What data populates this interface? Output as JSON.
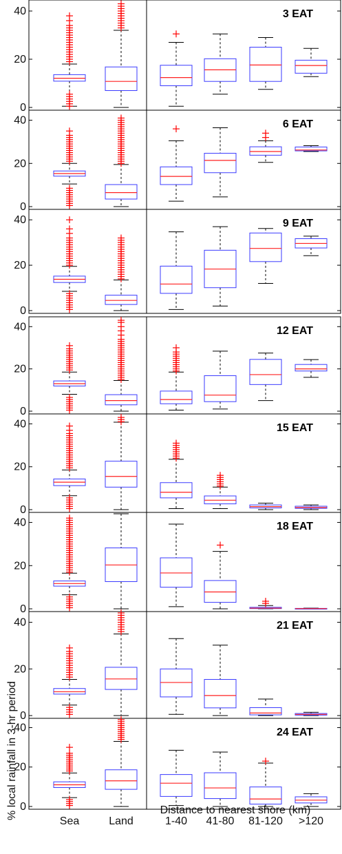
{
  "chart_data": {
    "type": "box",
    "categories": [
      "Sea",
      "Land",
      "1-40",
      "41-80",
      "81-120",
      ">120"
    ],
    "ylabel": "% local rainfall in 3-hr period",
    "xlabel": "Distance to nearest shore (km)",
    "ylim": [
      0,
      44
    ],
    "yticks": [
      0,
      20,
      40
    ],
    "colors": {
      "box": "#3a3aff",
      "median": "#ff2020",
      "outlier": "#ff0000",
      "whisker": "#000000"
    },
    "panels": [
      {
        "title": "3 EAT",
        "boxes": [
          {
            "category": "Sea",
            "low": 0.5,
            "q1": 10.9,
            "median": 12.1,
            "q3": 13.6,
            "high": 18,
            "outliers": [
              0.5,
              1.5,
              2.5,
              3.5,
              4.5,
              5.5,
              19,
              20,
              21,
              22,
              23,
              24,
              25,
              26,
              27,
              28,
              29,
              30,
              31,
              32,
              33,
              34,
              36,
              38
            ]
          },
          {
            "category": "Land",
            "low": 0,
            "q1": 7,
            "median": 10.8,
            "q3": 16.8,
            "high": 32,
            "outliers": [
              33,
              34,
              35,
              36,
              37,
              38,
              39,
              40,
              41,
              42,
              43
            ]
          },
          {
            "category": "1-40",
            "low": 0.5,
            "q1": 9,
            "median": 12.4,
            "q3": 17.5,
            "high": 27,
            "outliers": [
              30.5
            ]
          },
          {
            "category": "41-80",
            "low": 5.5,
            "q1": 10.8,
            "median": 15.6,
            "q3": 20.2,
            "high": 30.5,
            "outliers": []
          },
          {
            "category": "81-120",
            "low": 7.5,
            "q1": 10.8,
            "median": 17.6,
            "q3": 25,
            "high": 29,
            "outliers": []
          },
          {
            "category": ">120",
            "low": 12.8,
            "q1": 14.2,
            "median": 17.4,
            "q3": 19.6,
            "high": 24.5,
            "outliers": []
          }
        ]
      },
      {
        "title": "6 EAT",
        "boxes": [
          {
            "category": "Sea",
            "low": 10.5,
            "q1": 14.1,
            "median": 15.3,
            "q3": 16.5,
            "high": 20,
            "outliers": [
              0.5,
              1.5,
              2.5,
              3.5,
              4.5,
              5.5,
              6.5,
              7.5,
              8.5,
              21,
              22,
              23,
              24,
              25,
              26,
              27,
              28,
              29,
              30,
              31,
              32,
              33,
              35
            ]
          },
          {
            "category": "Land",
            "low": 0,
            "q1": 3.5,
            "median": 6.5,
            "q3": 10.2,
            "high": 19.5,
            "outliers": [
              20,
              21,
              22,
              23,
              24,
              25,
              26,
              27,
              28,
              29,
              30,
              31,
              32,
              33,
              34,
              35,
              36,
              37,
              38,
              39,
              40,
              41
            ]
          },
          {
            "category": "1-40",
            "low": 2.5,
            "q1": 10.2,
            "median": 14,
            "q3": 18.4,
            "high": 30.5,
            "outliers": [
              36
            ]
          },
          {
            "category": "41-80",
            "low": 4.5,
            "q1": 15.7,
            "median": 21.4,
            "q3": 24.7,
            "high": 36.5,
            "outliers": []
          },
          {
            "category": "81-120",
            "low": 20.5,
            "q1": 23.8,
            "median": 25.5,
            "q3": 27.7,
            "high": 30.5,
            "outliers": [
              32,
              34
            ]
          },
          {
            "category": ">120",
            "low": 25.5,
            "q1": 25.8,
            "median": 26.2,
            "q3": 27.6,
            "high": 28.2,
            "outliers": []
          }
        ]
      },
      {
        "title": "9 EAT",
        "boxes": [
          {
            "category": "Sea",
            "low": 8.5,
            "q1": 12.4,
            "median": 13.8,
            "q3": 15.2,
            "high": 19.5,
            "outliers": [
              0.5,
              1.5,
              2.5,
              3.5,
              4.5,
              5.5,
              6.5,
              7.5,
              20,
              21,
              22,
              23,
              24,
              25,
              26,
              27,
              28,
              29,
              30,
              31,
              32,
              34,
              36,
              40
            ]
          },
          {
            "category": "Land",
            "low": 0,
            "q1": 2.7,
            "median": 4.5,
            "q3": 6.8,
            "high": 13.5,
            "outliers": [
              14,
              15,
              16,
              17,
              18,
              19,
              20,
              21,
              22,
              23,
              24,
              25,
              26,
              27,
              28,
              29,
              30,
              31,
              32
            ]
          },
          {
            "category": "1-40",
            "low": 0.5,
            "q1": 7.6,
            "median": 11.7,
            "q3": 19.6,
            "high": 34.7,
            "outliers": []
          },
          {
            "category": "41-80",
            "low": 2,
            "q1": 10.1,
            "median": 18.3,
            "q3": 26.6,
            "high": 37,
            "outliers": []
          },
          {
            "category": "81-120",
            "low": 12,
            "q1": 21.6,
            "median": 27.4,
            "q3": 34.2,
            "high": 36.2,
            "outliers": []
          },
          {
            "category": ">120",
            "low": 24.2,
            "q1": 27.6,
            "median": 29.6,
            "q3": 31.7,
            "high": 32.8,
            "outliers": []
          }
        ]
      },
      {
        "title": "12 EAT",
        "boxes": [
          {
            "category": "Sea",
            "low": 8,
            "q1": 11.9,
            "median": 13,
            "q3": 14.3,
            "high": 18.5,
            "outliers": [
              0.5,
              1.5,
              2.5,
              3.5,
              4.5,
              5.5,
              6.5,
              19.5,
              20.5,
              21.5,
              22.5,
              23.5,
              24.5,
              25.5,
              26.5,
              27.5,
              28.5,
              29.5,
              31
            ]
          },
          {
            "category": "Land",
            "low": 0,
            "q1": 3,
            "median": 5,
            "q3": 7.8,
            "high": 14.5,
            "outliers": [
              15,
              16,
              17,
              18,
              19,
              20,
              21,
              22,
              23,
              24,
              25,
              26,
              27,
              28,
              29,
              30,
              31,
              32,
              33,
              34,
              36,
              38,
              40,
              42,
              43
            ]
          },
          {
            "category": "1-40",
            "low": 0.5,
            "q1": 3.5,
            "median": 5.5,
            "q3": 9.5,
            "high": 18.5,
            "outliers": [
              19,
              20,
              21,
              22,
              23,
              24,
              25,
              26,
              27,
              28,
              30
            ]
          },
          {
            "category": "41-80",
            "low": 1,
            "q1": 4.5,
            "median": 7.6,
            "q3": 16.8,
            "high": 28.4,
            "outliers": []
          },
          {
            "category": "81-120",
            "low": 5,
            "q1": 12.6,
            "median": 17.3,
            "q3": 24.5,
            "high": 27.5,
            "outliers": []
          },
          {
            "category": ">120",
            "low": 16,
            "q1": 19,
            "median": 20,
            "q3": 22.1,
            "high": 24.4,
            "outliers": []
          }
        ]
      },
      {
        "title": "15 EAT",
        "boxes": [
          {
            "category": "Sea",
            "low": 6.5,
            "q1": 11.2,
            "median": 12.8,
            "q3": 14.3,
            "high": 18.5,
            "outliers": [
              0.5,
              1.5,
              2.5,
              3.5,
              4.5,
              5.5,
              19.5,
              20.5,
              21.5,
              22.5,
              23.5,
              24.5,
              25.5,
              26.5,
              27.5,
              28.5,
              29.5,
              30.5,
              31.5,
              32.5,
              33.5,
              34.5,
              35.5,
              37,
              39
            ]
          },
          {
            "category": "Land",
            "low": 0,
            "q1": 10.5,
            "median": 15.5,
            "q3": 22.6,
            "high": 40.8,
            "outliers": [
              41,
              42,
              43
            ]
          },
          {
            "category": "1-40",
            "low": 0.5,
            "q1": 5.5,
            "median": 8.1,
            "q3": 12.6,
            "high": 23.5,
            "outliers": [
              24,
              25,
              26,
              27,
              28,
              29,
              30,
              31
            ]
          },
          {
            "category": "41-80",
            "low": 0.5,
            "q1": 2.7,
            "median": 4.4,
            "q3": 6.4,
            "high": 10.5,
            "outliers": [
              11,
              12,
              13,
              14,
              15,
              16
            ]
          },
          {
            "category": "81-120",
            "low": 0,
            "q1": 0.8,
            "median": 1.4,
            "q3": 2.2,
            "high": 3,
            "outliers": []
          },
          {
            "category": ">120",
            "low": 0,
            "q1": 0.6,
            "median": 1,
            "q3": 1.6,
            "high": 2.2,
            "outliers": []
          }
        ]
      },
      {
        "title": "18 EAT",
        "boxes": [
          {
            "category": "Sea",
            "low": 6.5,
            "q1": 10.5,
            "median": 11.7,
            "q3": 12.9,
            "high": 16.5,
            "outliers": [
              0.5,
              1.5,
              2.5,
              3.5,
              4.5,
              5.5,
              17,
              18,
              19,
              20,
              21,
              22,
              23,
              24,
              25,
              26,
              27,
              28,
              29,
              30,
              31,
              32,
              33,
              34,
              35,
              36,
              37,
              38,
              39,
              40,
              41,
              42
            ]
          },
          {
            "category": "Land",
            "low": 0,
            "q1": 12.6,
            "median": 20.3,
            "q3": 28.2,
            "high": 44,
            "outliers": []
          },
          {
            "category": "1-40",
            "low": 1,
            "q1": 10,
            "median": 16.6,
            "q3": 23.6,
            "high": 39.2,
            "outliers": []
          },
          {
            "category": "41-80",
            "low": 0,
            "q1": 3,
            "median": 7.8,
            "q3": 13.1,
            "high": 26.6,
            "outliers": [
              29.5
            ]
          },
          {
            "category": "81-120",
            "low": 0,
            "q1": 0.1,
            "median": 0.3,
            "q3": 0.7,
            "high": 1.5,
            "outliers": [
              2.5,
              3.5
            ]
          },
          {
            "category": ">120",
            "low": 0,
            "q1": 0,
            "median": 0.1,
            "q3": 0.2,
            "high": 0.3,
            "outliers": []
          }
        ]
      },
      {
        "title": "21 EAT",
        "boxes": [
          {
            "category": "Sea",
            "low": 4.5,
            "q1": 9.2,
            "median": 10.2,
            "q3": 11.6,
            "high": 15.5,
            "outliers": [
              0.5,
              1.5,
              2.5,
              3.5,
              16.5,
              17.5,
              18.5,
              19.5,
              20.5,
              21.5,
              22.5,
              23.5,
              24.5,
              25.5,
              26.5,
              27.5,
              29
            ]
          },
          {
            "category": "Land",
            "low": 0,
            "q1": 11.2,
            "median": 15.7,
            "q3": 20.7,
            "high": 35,
            "outliers": [
              36,
              37,
              38,
              39,
              40,
              41,
              42,
              43,
              44
            ]
          },
          {
            "category": "1-40",
            "low": 0.5,
            "q1": 8,
            "median": 14.2,
            "q3": 20,
            "high": 33,
            "outliers": []
          },
          {
            "category": "41-80",
            "low": 0,
            "q1": 3.3,
            "median": 8.6,
            "q3": 15.5,
            "high": 30.2,
            "outliers": []
          },
          {
            "category": "81-120",
            "low": 0,
            "q1": 0.3,
            "median": 1.1,
            "q3": 3.4,
            "high": 7.1,
            "outliers": []
          },
          {
            "category": ">120",
            "low": 0,
            "q1": 0.2,
            "median": 0.5,
            "q3": 0.9,
            "high": 1.4,
            "outliers": []
          }
        ]
      },
      {
        "title": "24 EAT",
        "boxes": [
          {
            "category": "Sea",
            "low": 4.5,
            "q1": 9.6,
            "median": 11,
            "q3": 12.5,
            "high": 17,
            "outliers": [
              0.5,
              1.5,
              2.5,
              3.5,
              18,
              19,
              20,
              21,
              22,
              23,
              24,
              25,
              26,
              27,
              30
            ]
          },
          {
            "category": "Land",
            "low": 0,
            "q1": 8.7,
            "median": 13,
            "q3": 18.6,
            "high": 33,
            "outliers": [
              34,
              35,
              36,
              37,
              38,
              39,
              40,
              41,
              42,
              43,
              44
            ]
          },
          {
            "category": "1-40",
            "low": 0.5,
            "q1": 5.1,
            "median": 11.8,
            "q3": 16.2,
            "high": 28.5,
            "outliers": []
          },
          {
            "category": "41-80",
            "low": 0,
            "q1": 4,
            "median": 9.4,
            "q3": 17.1,
            "high": 27.6,
            "outliers": []
          },
          {
            "category": "81-120",
            "low": 0,
            "q1": 1.2,
            "median": 3.8,
            "q3": 9.9,
            "high": 22,
            "outliers": [
              23
            ]
          },
          {
            "category": ">120",
            "low": 0,
            "q1": 1.8,
            "median": 3.2,
            "q3": 4.9,
            "high": 6.5,
            "outliers": []
          }
        ]
      }
    ]
  }
}
